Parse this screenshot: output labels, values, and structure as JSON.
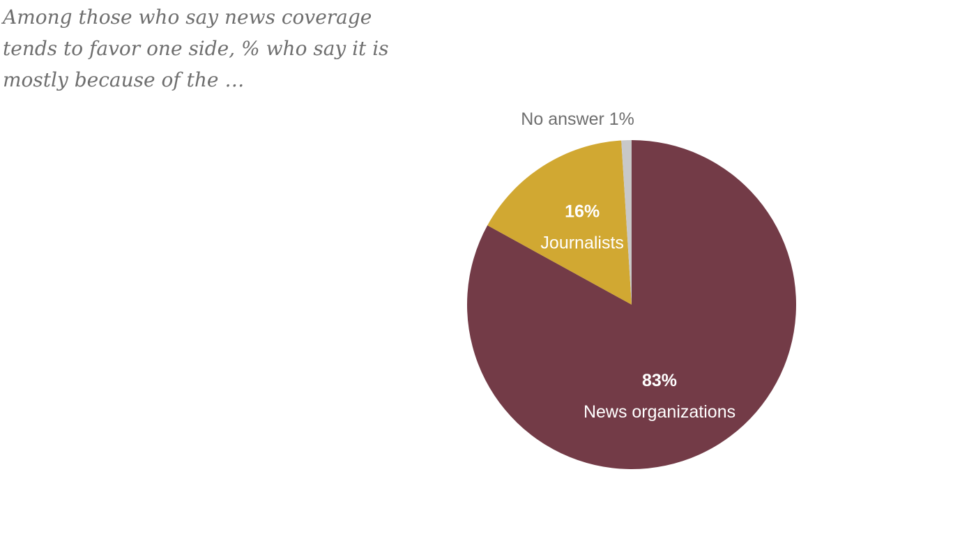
{
  "subtitle_lines": [
    "Among those who say news coverage",
    "tends to favor one side, % who say it is",
    "mostly because of the …"
  ],
  "chart_data": {
    "type": "pie",
    "title": "",
    "slices": [
      {
        "label": "News organizations",
        "value": 83,
        "value_label": "83%",
        "color": "#733b47",
        "label_color": "#ffffff",
        "label_position": "inside"
      },
      {
        "label": "Journalists",
        "value": 16,
        "value_label": "16%",
        "color": "#d1a832",
        "label_color": "#ffffff",
        "label_position": "inside"
      },
      {
        "label": "No answer",
        "value": 1,
        "value_label": "1%",
        "color": "#c8c8c8",
        "label_color": "#6e6e6e",
        "label_position": "outside-top"
      }
    ],
    "start": "12 o'clock",
    "direction": "clockwise"
  }
}
